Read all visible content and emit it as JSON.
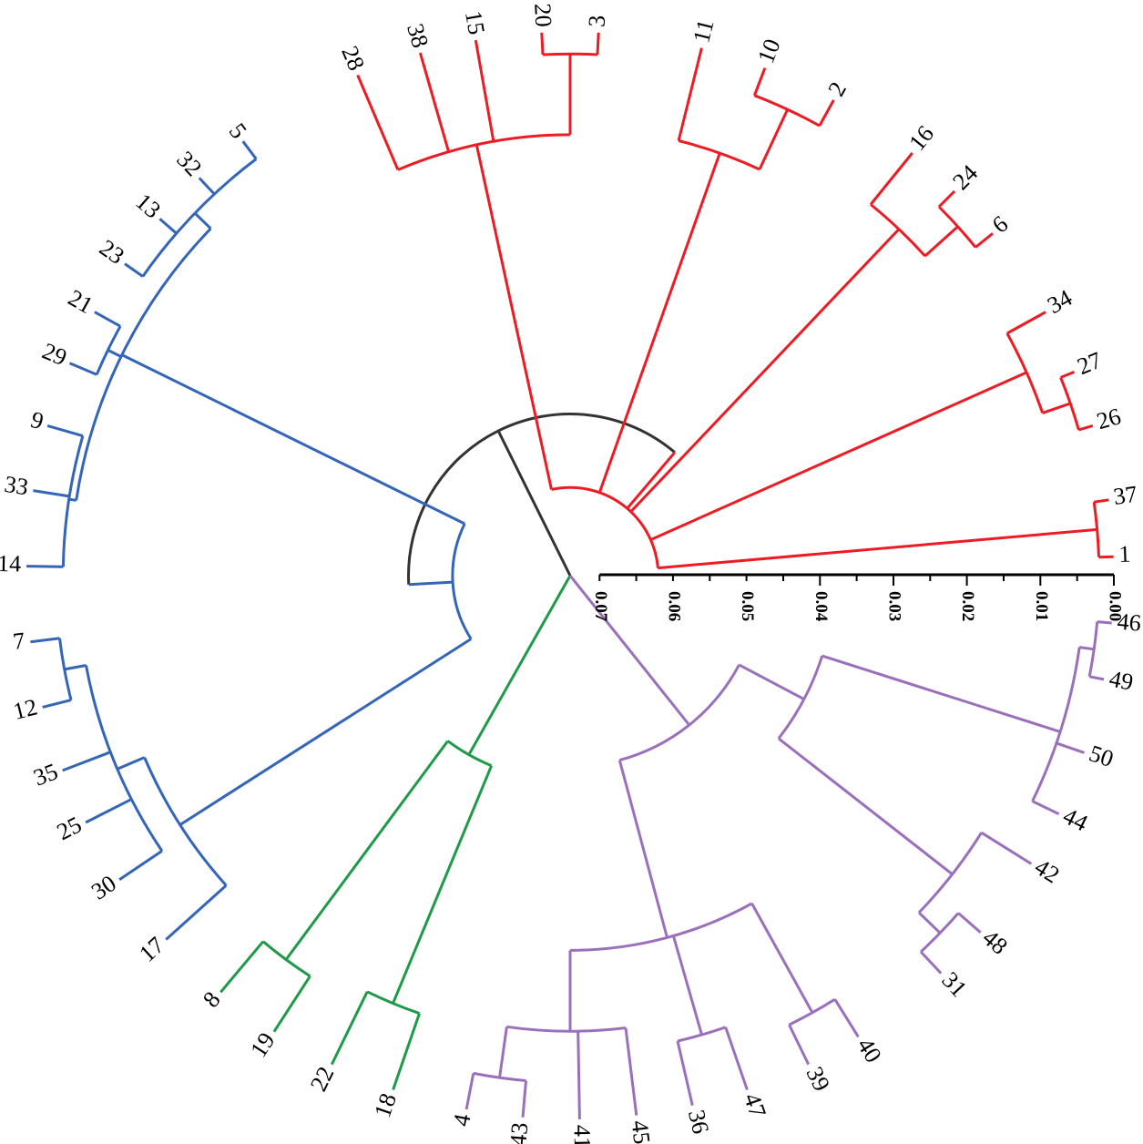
{
  "chart_data": {
    "type": "circular-dendrogram",
    "layout": "circular",
    "colors": {
      "red": "#ed1c24",
      "blue": "#3465b8",
      "green": "#1e9a48",
      "purple": "#9a70bc",
      "black": "#333333"
    },
    "axis": {
      "ticks": [
        "0.07",
        "0.06",
        "0.05",
        "0.04",
        "0.03",
        "0.02",
        "0.01",
        "0.00"
      ],
      "range": [
        0.07,
        0.0
      ]
    },
    "leaves": [
      {
        "label": "1",
        "cluster": "red",
        "angle": -2
      },
      {
        "label": "37",
        "cluster": "red",
        "angle": -8
      },
      {
        "label": "26",
        "cluster": "red",
        "angle": -16
      },
      {
        "label": "27",
        "cluster": "red",
        "angle": -22
      },
      {
        "label": "34",
        "cluster": "red",
        "angle": -29
      },
      {
        "label": "6",
        "cluster": "red",
        "angle": -39
      },
      {
        "label": "24",
        "cluster": "red",
        "angle": -45
      },
      {
        "label": "16",
        "cluster": "red",
        "angle": -51
      },
      {
        "label": "2",
        "cluster": "red",
        "angle": -61
      },
      {
        "label": "10",
        "cluster": "red",
        "angle": -69
      },
      {
        "label": "11",
        "cluster": "red",
        "angle": -76
      },
      {
        "label": "3",
        "cluster": "red",
        "angle": -87
      },
      {
        "label": "20",
        "cluster": "red",
        "angle": -93
      },
      {
        "label": "15",
        "cluster": "red",
        "angle": -100
      },
      {
        "label": "38",
        "cluster": "red",
        "angle": -106
      },
      {
        "label": "28",
        "cluster": "red",
        "angle": -113
      },
      {
        "label": "5",
        "cluster": "blue",
        "angle": -127
      },
      {
        "label": "32",
        "cluster": "blue",
        "angle": -133
      },
      {
        "label": "13",
        "cluster": "blue",
        "angle": -139
      },
      {
        "label": "23",
        "cluster": "blue",
        "angle": -145
      },
      {
        "label": "21",
        "cluster": "blue",
        "angle": -151
      },
      {
        "label": "29",
        "cluster": "blue",
        "angle": -157
      },
      {
        "label": "9",
        "cluster": "blue",
        "angle": -164
      },
      {
        "label": "33",
        "cluster": "blue",
        "angle": -171
      },
      {
        "label": "14",
        "cluster": "blue",
        "angle": -179
      },
      {
        "label": "7",
        "cluster": "blue",
        "angle": 173
      },
      {
        "label": "12",
        "cluster": "blue",
        "angle": 166
      },
      {
        "label": "35",
        "cluster": "blue",
        "angle": 159
      },
      {
        "label": "25",
        "cluster": "blue",
        "angle": 153
      },
      {
        "label": "30",
        "cluster": "blue",
        "angle": 146
      },
      {
        "label": "17",
        "cluster": "blue",
        "angle": 138
      },
      {
        "label": "8",
        "cluster": "green",
        "angle": 130
      },
      {
        "label": "19",
        "cluster": "green",
        "angle": 123
      },
      {
        "label": "22",
        "cluster": "green",
        "angle": 116
      },
      {
        "label": "18",
        "cluster": "green",
        "angle": 109
      },
      {
        "label": "4",
        "cluster": "purple",
        "angle": 101
      },
      {
        "label": "43",
        "cluster": "purple",
        "angle": 95
      },
      {
        "label": "41",
        "cluster": "purple",
        "angle": 89
      },
      {
        "label": "45",
        "cluster": "purple",
        "angle": 83
      },
      {
        "label": "36",
        "cluster": "purple",
        "angle": 77
      },
      {
        "label": "47",
        "cluster": "purple",
        "angle": 71
      },
      {
        "label": "39",
        "cluster": "purple",
        "angle": 64
      },
      {
        "label": "40",
        "cluster": "purple",
        "angle": 58
      },
      {
        "label": "31",
        "cluster": "purple",
        "angle": 47
      },
      {
        "label": "48",
        "cluster": "purple",
        "angle": 41
      },
      {
        "label": "42",
        "cluster": "purple",
        "angle": 32
      },
      {
        "label": "44",
        "cluster": "purple",
        "angle": 26
      },
      {
        "label": "50",
        "cluster": "purple",
        "angle": 19
      },
      {
        "label": "49",
        "cluster": "purple",
        "angle": 11
      },
      {
        "label": "46",
        "cluster": "purple",
        "angle": 5
      }
    ]
  }
}
